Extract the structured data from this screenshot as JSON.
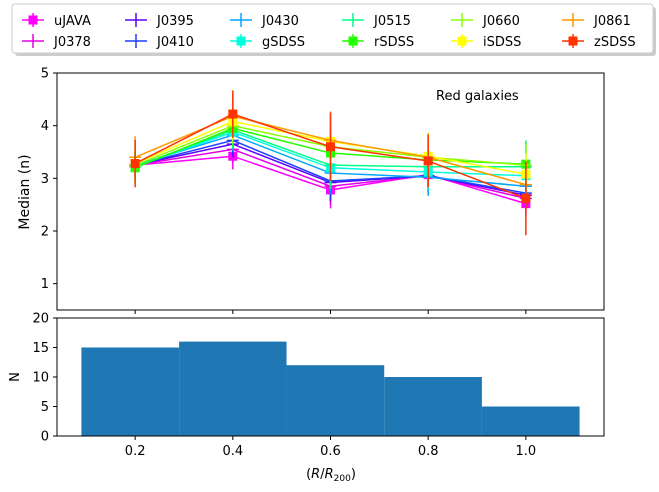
{
  "chart_data": [
    {
      "type": "line",
      "panel": "top",
      "annotation": "Red galaxies",
      "ylabel": "Median (n)",
      "xlim": [
        0.04,
        1.16
      ],
      "ylim": [
        0.5,
        5
      ],
      "yticks": [
        1,
        2,
        3,
        4,
        5
      ],
      "legend_position": "top (above figure), 6 columns",
      "x": [
        0.2,
        0.4,
        0.6,
        0.8,
        1.0
      ],
      "series": [
        {
          "name": "uJAVA",
          "color": "#ff00ff",
          "marker": "square",
          "values": [
            3.25,
            3.42,
            2.78,
            3.07,
            2.52
          ],
          "errors": [
            0.2,
            0.25,
            0.35,
            0.3,
            0.25
          ]
        },
        {
          "name": "J0378",
          "color": "#e600e6",
          "marker": "plus",
          "values": [
            3.25,
            3.55,
            2.85,
            3.05,
            2.62
          ],
          "errors": [
            0.2,
            0.25,
            0.35,
            0.3,
            0.25
          ]
        },
        {
          "name": "J0395",
          "color": "#5a00ff",
          "marker": "plus",
          "values": [
            3.25,
            3.65,
            2.92,
            3.05,
            2.68
          ],
          "errors": [
            0.2,
            0.25,
            0.35,
            0.3,
            0.25
          ]
        },
        {
          "name": "J0410",
          "color": "#1f3fff",
          "marker": "plus",
          "values": [
            3.25,
            3.72,
            2.95,
            3.05,
            2.72
          ],
          "errors": [
            0.2,
            0.25,
            0.35,
            0.3,
            0.25
          ]
        },
        {
          "name": "J0430",
          "color": "#00a5ff",
          "marker": "plus",
          "values": [
            3.25,
            3.82,
            3.1,
            3.02,
            2.85
          ],
          "errors": [
            0.25,
            0.3,
            0.4,
            0.35,
            0.25
          ]
        },
        {
          "name": "gSDSS",
          "color": "#00ffdd",
          "marker": "square",
          "values": [
            3.22,
            3.88,
            3.2,
            3.12,
            3.05
          ],
          "errors": [
            0.25,
            0.3,
            0.4,
            0.35,
            0.3
          ]
        },
        {
          "name": "J0515",
          "color": "#00ff88",
          "marker": "plus",
          "values": [
            3.22,
            3.92,
            3.25,
            3.22,
            3.22
          ],
          "errors": [
            0.3,
            0.35,
            0.45,
            0.4,
            0.5
          ]
        },
        {
          "name": "rSDSS",
          "color": "#22ff00",
          "marker": "square",
          "values": [
            3.2,
            3.95,
            3.48,
            3.35,
            3.27
          ],
          "errors": [
            0.3,
            0.35,
            0.45,
            0.4,
            0.4
          ]
        },
        {
          "name": "J0660",
          "color": "#8cff00",
          "marker": "plus",
          "values": [
            3.25,
            4.0,
            3.6,
            3.4,
            3.25
          ],
          "errors": [
            0.3,
            0.35,
            0.45,
            0.4,
            0.4
          ]
        },
        {
          "name": "iSDSS",
          "color": "#ffff00",
          "marker": "square",
          "values": [
            3.28,
            4.08,
            3.7,
            3.42,
            3.08
          ],
          "errors": [
            0.4,
            0.35,
            0.55,
            0.45,
            0.4
          ]
        },
        {
          "name": "J0861",
          "color": "#ff9900",
          "marker": "plus",
          "values": [
            3.4,
            4.18,
            3.72,
            3.4,
            2.88
          ],
          "errors": [
            0.4,
            0.4,
            0.55,
            0.45,
            0.45
          ]
        },
        {
          "name": "zSDSS",
          "color": "#ff3300",
          "marker": "square",
          "values": [
            3.28,
            4.22,
            3.6,
            3.33,
            2.62
          ],
          "errors": [
            0.45,
            0.45,
            0.65,
            0.5,
            0.7
          ]
        }
      ]
    },
    {
      "type": "bar",
      "panel": "bottom",
      "xlabel": "(R/R200)",
      "ylabel": "N",
      "xlim": [
        0.04,
        1.16
      ],
      "ylim": [
        0,
        20
      ],
      "yticks": [
        0,
        5,
        10,
        15,
        20
      ],
      "xticks": [
        0.2,
        0.4,
        0.6,
        0.8,
        1.0
      ],
      "bin_edges": [
        0.09,
        0.29,
        0.51,
        0.71,
        0.91,
        1.11
      ],
      "values": [
        15,
        16,
        12,
        10,
        5
      ],
      "color": "#1f77b4"
    }
  ]
}
